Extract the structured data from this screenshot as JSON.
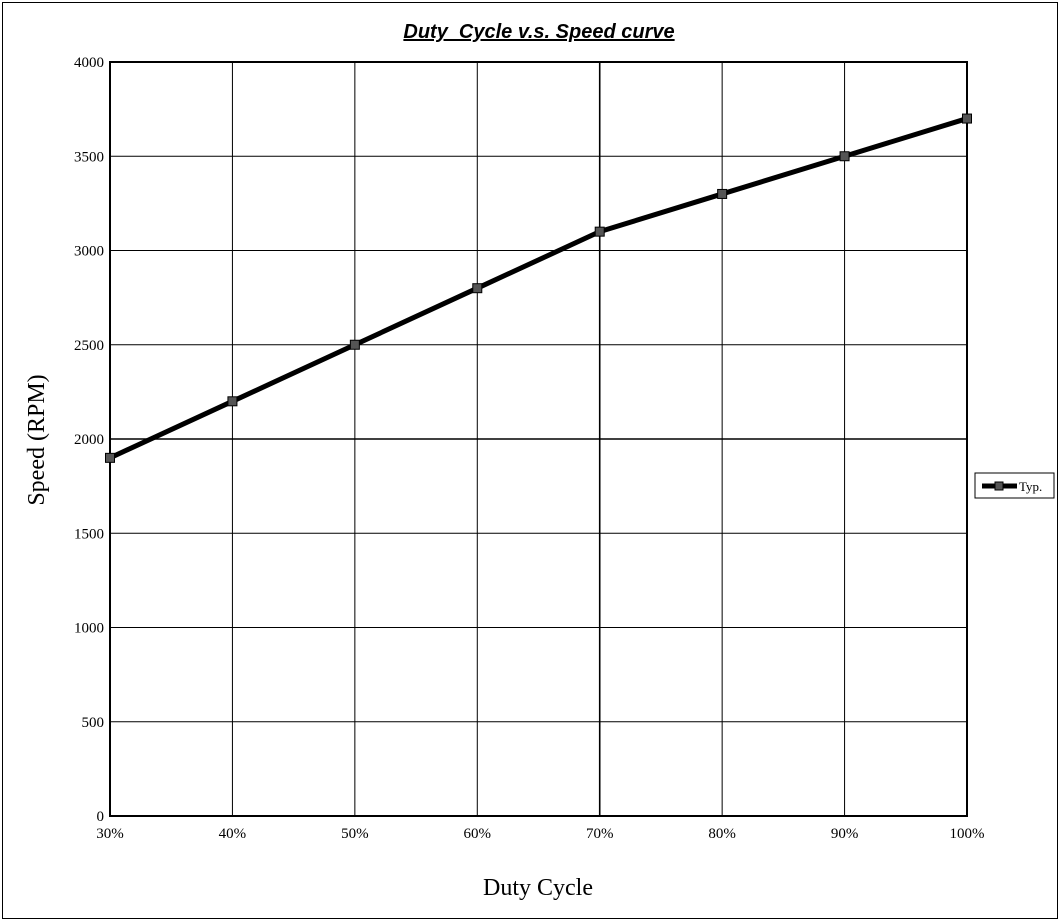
{
  "chart_data": {
    "type": "line",
    "title": "Duty  Cycle v.s. Speed curve",
    "xlabel": "Duty Cycle",
    "ylabel": "Speed (RPM)",
    "categories": [
      "30%",
      "40%",
      "50%",
      "60%",
      "70%",
      "80%",
      "90%",
      "100%"
    ],
    "y_ticks": [
      "0",
      "500",
      "1000",
      "1500",
      "2000",
      "2500",
      "3000",
      "3500",
      "4000"
    ],
    "ylim": [
      0,
      4000
    ],
    "grid": true,
    "legend_position": "right",
    "line_color": "#000000",
    "series": [
      {
        "name": "Typ.",
        "values": [
          1900,
          2200,
          2500,
          2800,
          3100,
          3300,
          3500,
          3700
        ]
      }
    ]
  }
}
